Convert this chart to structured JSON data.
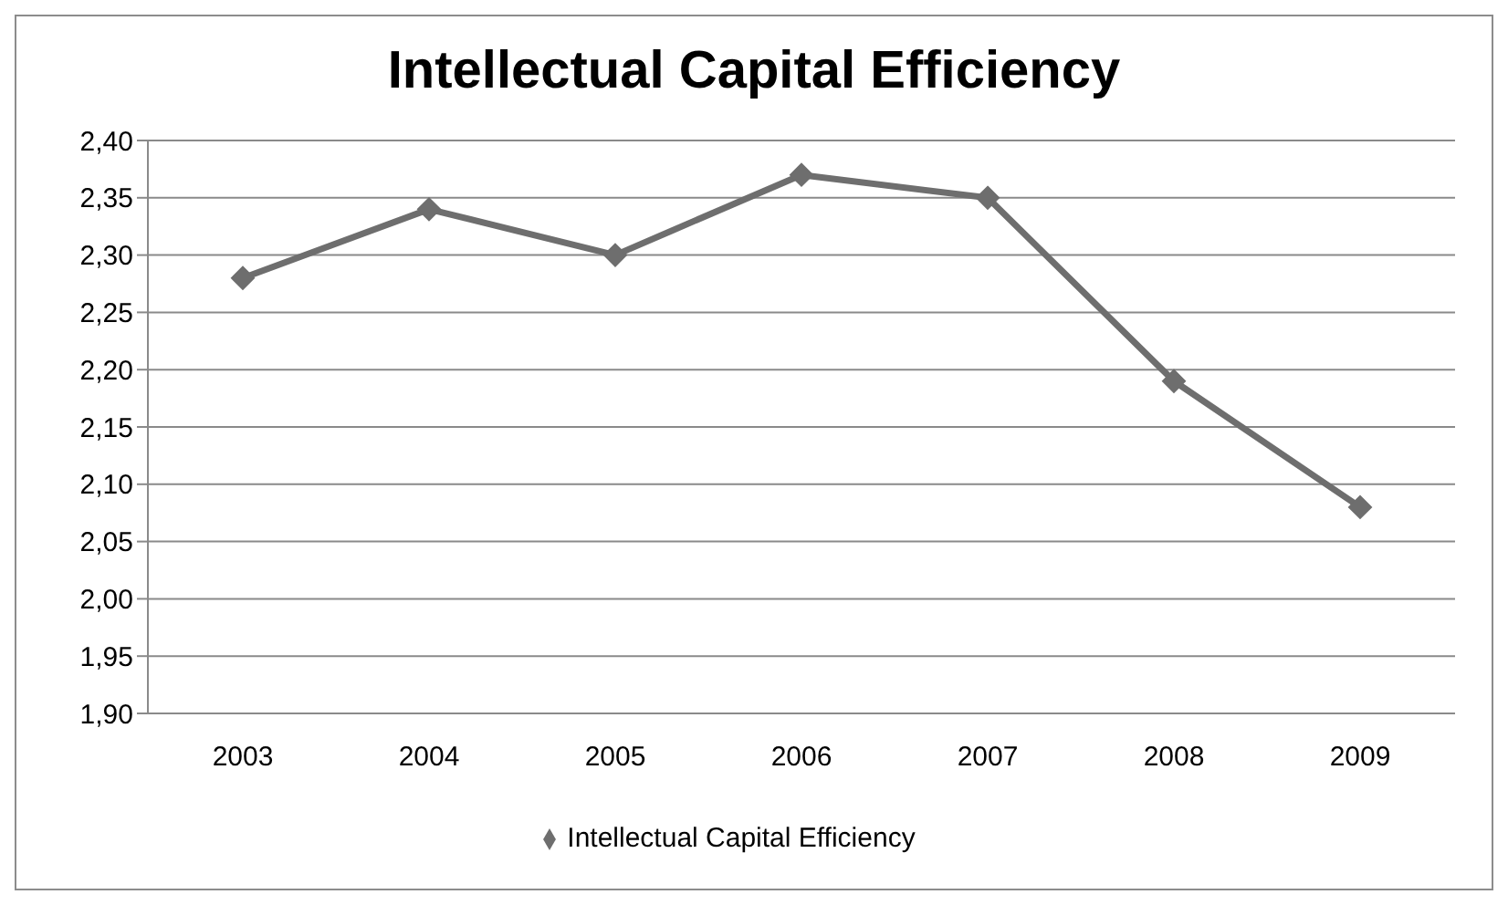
{
  "chart_data": {
    "type": "line",
    "title": "Intellectual Capital Efficiency",
    "categories": [
      "2003",
      "2004",
      "2005",
      "2006",
      "2007",
      "2008",
      "2009"
    ],
    "series": [
      {
        "name": "Intellectual Capital Efficiency",
        "color": "#6e6e6e",
        "values": [
          2.28,
          2.34,
          2.3,
          2.37,
          2.35,
          2.19,
          2.08
        ]
      }
    ],
    "ylim": [
      1.9,
      2.4
    ],
    "yticks": [
      {
        "value": 1.9,
        "label": "1,90"
      },
      {
        "value": 1.95,
        "label": "1,95"
      },
      {
        "value": 2.0,
        "label": "2,00"
      },
      {
        "value": 2.05,
        "label": "2,05"
      },
      {
        "value": 2.1,
        "label": "2,10"
      },
      {
        "value": 2.15,
        "label": "2,15"
      },
      {
        "value": 2.2,
        "label": "2,20"
      },
      {
        "value": 2.25,
        "label": "2,25"
      },
      {
        "value": 2.3,
        "label": "2,30"
      },
      {
        "value": 2.35,
        "label": "2,35"
      },
      {
        "value": 2.4,
        "label": "2,40"
      }
    ],
    "grid": "y",
    "legend": "bottom",
    "marker": "diamond",
    "line_style": "solid"
  }
}
